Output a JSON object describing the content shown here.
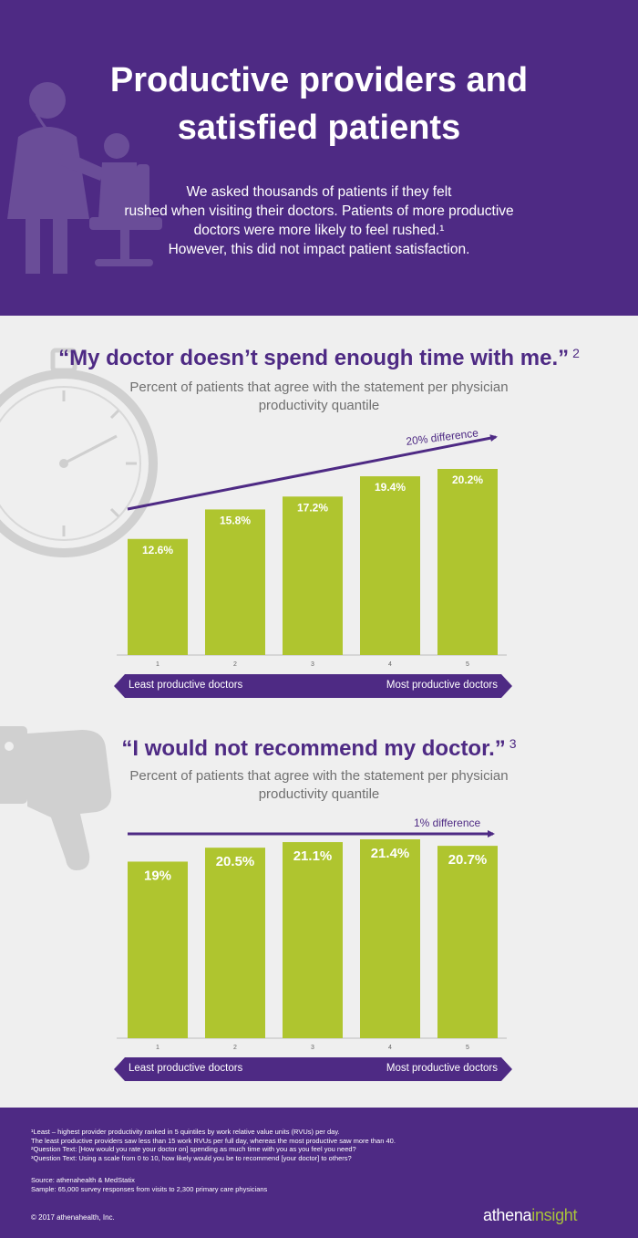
{
  "header": {
    "title_lines": [
      "Productive providers and",
      "satisfied patients"
    ],
    "intro_lines": [
      "We asked thousands of patients if they felt",
      "rushed when visiting their doctors. Patients of more productive",
      "doctors were more likely to feel rushed.¹",
      "However, this did not impact patient satisfaction."
    ],
    "illustration_icon": "doctor-examining-patient-icon"
  },
  "colors": {
    "purple": "#4e2a84",
    "bar": "#afc52f",
    "background": "#efefef",
    "logo_green": "#a8c23a"
  },
  "chart_data": [
    {
      "type": "bar",
      "title": "“My doctor doesn’t spend enough time with me.”",
      "title_note": "2",
      "subtitle_lines": [
        "Percent of patients that agree with the statement per physician",
        "productivity quantile"
      ],
      "categories": [
        "1",
        "2",
        "3",
        "4",
        "5"
      ],
      "values": [
        12.6,
        15.8,
        17.2,
        19.4,
        20.2
      ],
      "value_labels": [
        "12.6%",
        "15.8%",
        "17.2%",
        "19.4%",
        "20.2%"
      ],
      "ylim": [
        0,
        20.2
      ],
      "trend_annotation": "20% difference",
      "axis_band": {
        "left": "Least productive doctors",
        "right": "Most productive doctors"
      },
      "background_icon": "stopwatch-icon"
    },
    {
      "type": "bar",
      "title": "“I would not recommend my doctor.”",
      "title_note": "3",
      "subtitle_lines": [
        "Percent of patients that agree with the statement per physician",
        "productivity quantile"
      ],
      "categories": [
        "1",
        "2",
        "3",
        "4",
        "5"
      ],
      "values": [
        19,
        20.5,
        21.1,
        21.4,
        20.7
      ],
      "value_labels": [
        "19%",
        "20.5%",
        "21.1%",
        "21.4%",
        "20.7%"
      ],
      "ylim": [
        0,
        21.4
      ],
      "trend_annotation": "1% difference",
      "axis_band": {
        "left": "Least productive doctors",
        "right": "Most productive doctors"
      },
      "background_icon": "thumbs-down-icon"
    }
  ],
  "footer": {
    "notes": [
      "¹Least – highest provider productivity ranked in 5 quintiles by work relative value units (RVUs) per day.",
      "  The least productive providers saw less than 15 work RVUs per full day, whereas the most productive saw more than 40.",
      "²Question Text: [How would you rate your doctor on] spending as much time with you as you feel you need?",
      "³Question Text: Using a scale from 0 to 10, how likely would you be to recommend [your doctor] to others?"
    ],
    "source": "Source: athenahealth & MedStatix",
    "sample": "Sample: 65,000 survey responses from visits to 2,300 primary care physicians",
    "copyright": "© 2017 athenahealth, Inc.",
    "logo_part1": "athena",
    "logo_part2": "insight"
  }
}
